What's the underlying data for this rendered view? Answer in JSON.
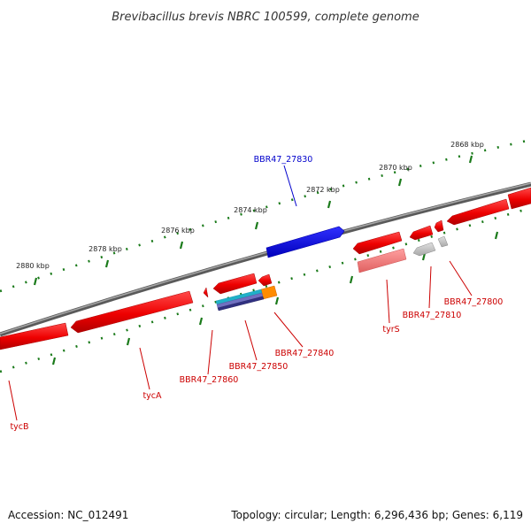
{
  "title": "Brevibacillus brevis NBRC 100599, complete genome",
  "footer": {
    "accession": "Accession: NC_012491",
    "summary": "Topology: circular; Length: 6,296,436 bp; Genes: 6,119"
  },
  "ticks": [
    {
      "label": "2868 kbp"
    },
    {
      "label": "2870 kbp"
    },
    {
      "label": "2872 kbp"
    },
    {
      "label": "2874 kbp"
    },
    {
      "label": "2876 kbp"
    },
    {
      "label": "2878 kbp"
    },
    {
      "label": "2880 kbp"
    }
  ],
  "genes": [
    {
      "name": "BBR47_27830",
      "color": "#0000cc",
      "strand": "forward"
    },
    {
      "name": "BBR47_27800",
      "color": "#cc0000",
      "strand": "reverse"
    },
    {
      "name": "BBR47_27810",
      "color": "#cc0000",
      "strand": "reverse"
    },
    {
      "name": "tyrS",
      "color": "#cc0000",
      "strand": "reverse"
    },
    {
      "name": "BBR47_27840",
      "color": "#cc0000",
      "strand": "reverse"
    },
    {
      "name": "BBR47_27850",
      "color": "#cc0000",
      "strand": "reverse"
    },
    {
      "name": "BBR47_27860",
      "color": "#cc0000",
      "strand": "reverse"
    },
    {
      "name": "tycA",
      "color": "#cc0000",
      "strand": "reverse"
    },
    {
      "name": "tycB",
      "color": "#cc0000",
      "strand": "reverse"
    }
  ],
  "colors": {
    "backbone": "#7a7a7a",
    "tick": "#1a7a1a",
    "gene_forward": "#0000ee",
    "gene_reverse": "#ee0000",
    "label_forward": "#0000cc",
    "label_reverse": "#cc0000"
  }
}
